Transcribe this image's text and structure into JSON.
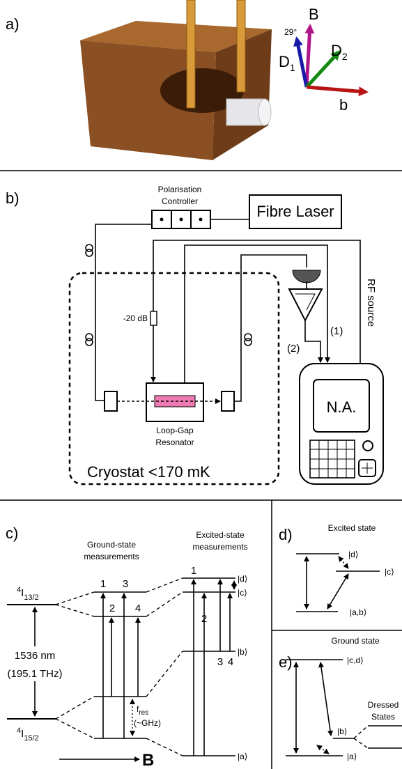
{
  "panel_a": {
    "label": "a)",
    "axes": {
      "B": "B",
      "angle": "29°",
      "D1": {
        "main": "D",
        "sub": "1"
      },
      "D2": {
        "main": "D",
        "sub": "2"
      },
      "b": "b"
    }
  },
  "panel_b": {
    "label": "b)",
    "polarisation_controller": [
      "Polarisation",
      "Controller"
    ],
    "fibre_laser": "Fibre Laser",
    "rf_source": "RF source",
    "attenuator": "-20 dB",
    "path_1": "(1)",
    "path_2": "(2)",
    "analyzer": "N.A.",
    "resonator": [
      "Loop-Gap",
      "Resonator"
    ],
    "cryostat": "Cryostat <170 mK"
  },
  "panel_c": {
    "label": "c)",
    "ground_title": [
      "Ground-state",
      "measurements"
    ],
    "excited_title": [
      "Excited-state",
      "measurements"
    ],
    "upper_manifold": {
      "sup": "4",
      "main": "I",
      "sub": "13/2"
    },
    "lower_manifold": {
      "sup": "4",
      "main": "I",
      "sub": "15/2"
    },
    "wavelength": "1536 nm",
    "frequency": "(195.1 THz)",
    "f_res": {
      "main": "f",
      "sub": "res"
    },
    "f_res_note": "(~GHz)",
    "field": "B",
    "ground_transitions": [
      "1",
      "3",
      "2",
      "4"
    ],
    "excited_transitions": [
      "1",
      "2",
      "3",
      "4"
    ],
    "states": [
      "|d⟩",
      "|c⟩",
      "|b⟩",
      "|a⟩"
    ]
  },
  "panel_d": {
    "label": "d)",
    "title": "Excited state",
    "states": [
      "|d⟩",
      "|c⟩",
      "|a,b⟩"
    ]
  },
  "panel_e": {
    "label": "e)",
    "title": "Ground state",
    "states": [
      "|c,d⟩",
      "|b⟩",
      "|a⟩"
    ],
    "dressed": [
      "Dressed",
      "States"
    ]
  }
}
